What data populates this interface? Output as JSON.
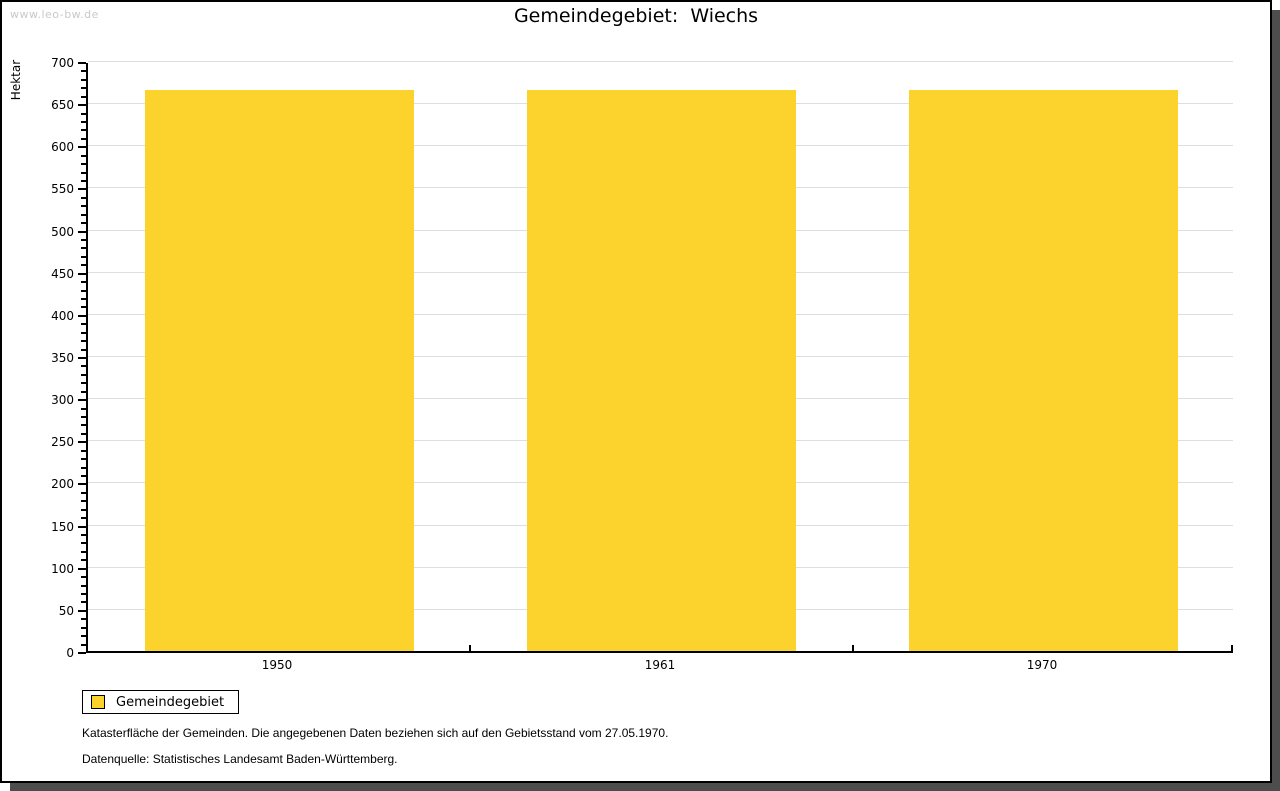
{
  "watermark": "www.leo-bw.de",
  "chart_data": {
    "type": "bar",
    "title": "Gemeindegebiet:  Wiechs",
    "categories": [
      "1950",
      "1961",
      "1970"
    ],
    "series": [
      {
        "name": "Gemeindegebiet",
        "values": [
          665,
          665,
          665
        ]
      }
    ],
    "xlabel": "",
    "ylabel": "Hektar",
    "ylim": [
      0,
      700
    ],
    "ytick_step": 50,
    "yminor_tick_step": 10,
    "grid": true,
    "legend_position": "bottom-left",
    "bar_color": "#FCD32C",
    "grid_color": "#DEDEDE",
    "axis_color": "#000000"
  },
  "legend": {
    "label": "Gemeindegebiet"
  },
  "footnotes": [
    "Katasterfläche der Gemeinden. Die angegebenen Daten beziehen sich auf den Gebietsstand vom 27.05.1970.",
    "Datenquelle: Statistisches Landesamt Baden-Württemberg."
  ]
}
